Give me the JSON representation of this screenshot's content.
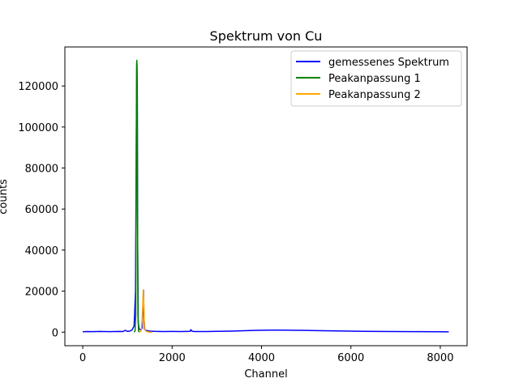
{
  "chart_data": {
    "type": "line",
    "title": "Spektrum von Cu",
    "xlabel": "Channel",
    "ylabel": "counts",
    "xlim": [
      -400,
      8600
    ],
    "ylim": [
      -6600,
      139000
    ],
    "xticks": [
      0,
      2000,
      4000,
      6000,
      8000
    ],
    "xtick_labels": [
      "0",
      "2000",
      "4000",
      "6000",
      "8000"
    ],
    "yticks": [
      0,
      20000,
      40000,
      60000,
      80000,
      100000,
      120000
    ],
    "ytick_labels": [
      "0",
      "20000",
      "40000",
      "60000",
      "80000",
      "100000",
      "120000"
    ],
    "grid": false,
    "legend_position": "top-right",
    "series": [
      {
        "name": "gemessenes Spektrum",
        "color": "#0000ff",
        "x": [
          0,
          100,
          200,
          300,
          400,
          500,
          600,
          700,
          800,
          900,
          950,
          1000,
          1050,
          1100,
          1150,
          1180,
          1200,
          1210,
          1220,
          1230,
          1240,
          1260,
          1300,
          1330,
          1350,
          1360,
          1370,
          1380,
          1400,
          1450,
          1500,
          1600,
          1800,
          2000,
          2200,
          2400,
          2420,
          2440,
          2460,
          2500,
          2700,
          3000,
          3300,
          3600,
          3900,
          4200,
          4500,
          4800,
          5100,
          5400,
          5700,
          6000,
          6300,
          6600,
          7000,
          7500,
          8000,
          8190
        ],
        "y": [
          200,
          300,
          250,
          300,
          350,
          300,
          250,
          300,
          350,
          300,
          900,
          400,
          500,
          1000,
          3000,
          20000,
          100000,
          132000,
          120000,
          40000,
          5000,
          1500,
          1200,
          2000,
          15000,
          20500,
          8000,
          1500,
          1000,
          700,
          500,
          400,
          300,
          350,
          300,
          400,
          1200,
          600,
          400,
          300,
          300,
          400,
          500,
          700,
          900,
          1000,
          1000,
          900,
          800,
          700,
          600,
          500,
          400,
          350,
          300,
          250,
          200,
          150
        ]
      },
      {
        "name": "Peakanpassung 1",
        "color": "#008000",
        "x": [
          1150,
          1170,
          1185,
          1195,
          1200,
          1205,
          1210,
          1215,
          1220,
          1225,
          1235,
          1250,
          1270
        ],
        "y": [
          0,
          500,
          8000,
          60000,
          110000,
          130000,
          132500,
          130000,
          110000,
          60000,
          8000,
          500,
          0
        ]
      },
      {
        "name": "Peakanpassung 2",
        "color": "#ffa500",
        "x": [
          1280,
          1310,
          1330,
          1345,
          1355,
          1365,
          1375,
          1390,
          1410,
          1450,
          1500,
          1550
        ],
        "y": [
          0,
          800,
          6000,
          15000,
          20500,
          15000,
          6000,
          1500,
          600,
          200,
          50,
          0
        ]
      }
    ]
  }
}
